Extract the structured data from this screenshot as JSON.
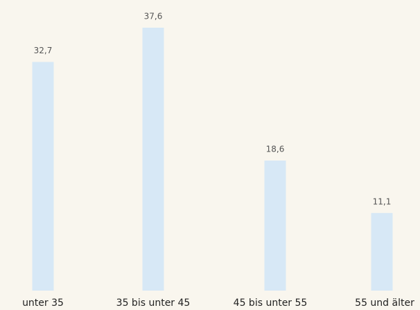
{
  "chart_data": {
    "type": "bar",
    "categories": [
      "unter 35",
      "35 bis unter 45",
      "45 bis unter 55",
      "55 und älter"
    ],
    "values": [
      32.7,
      37.6,
      18.6,
      11.1
    ],
    "value_labels": [
      "32,7",
      "37,6",
      "18,6",
      "11,1"
    ],
    "color": "#d7e8f6"
  }
}
